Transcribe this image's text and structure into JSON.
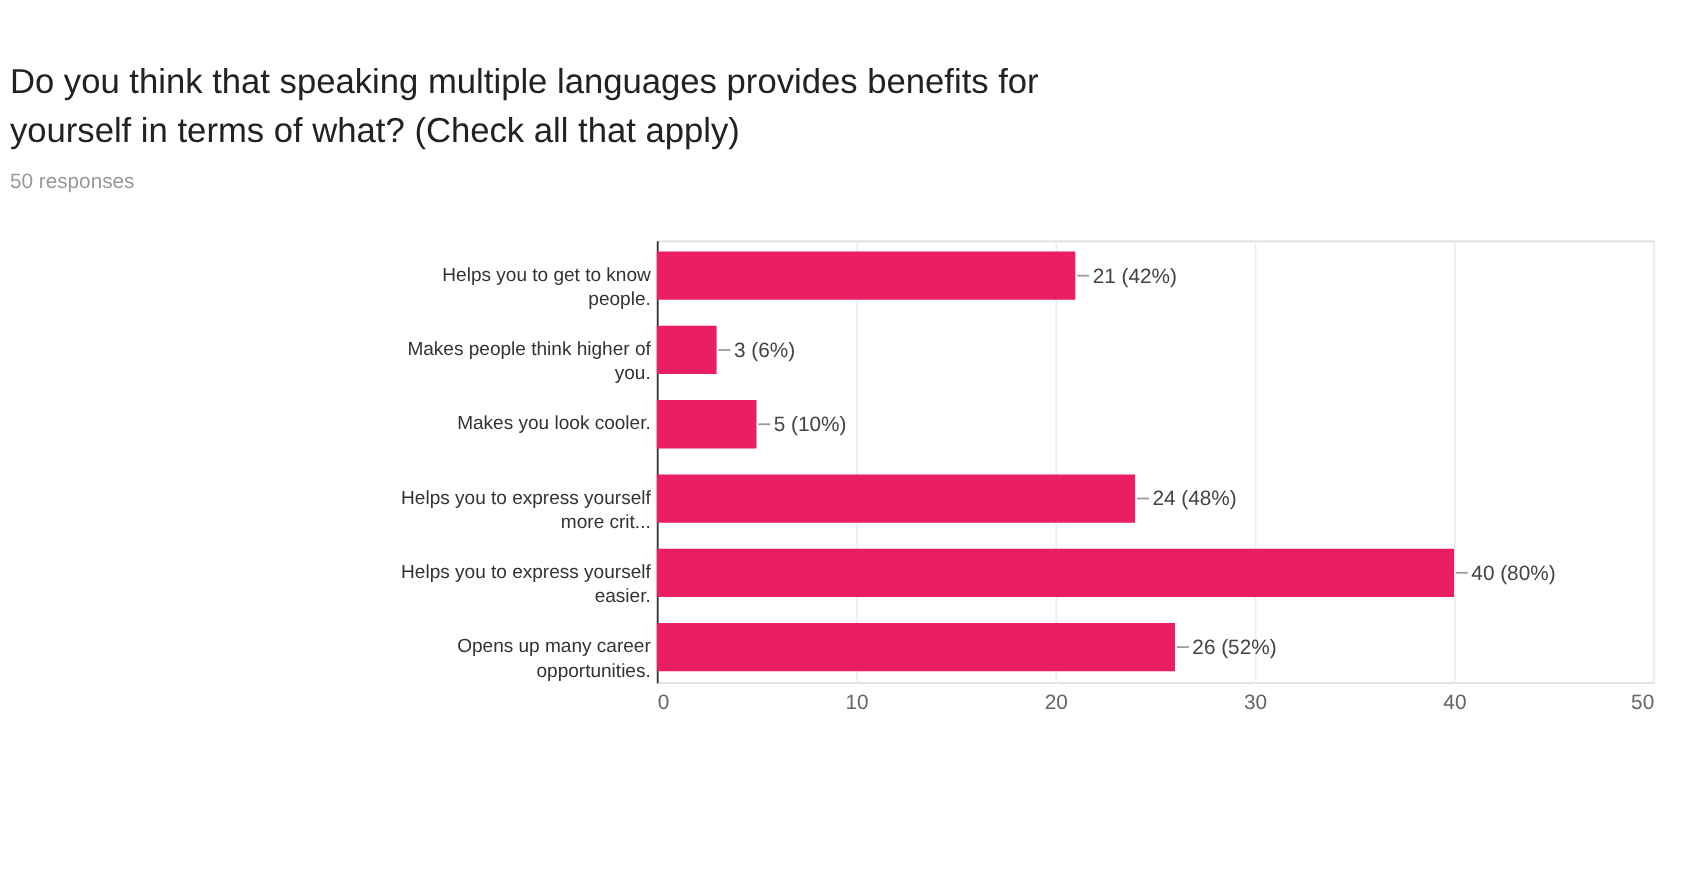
{
  "chart_data": {
    "type": "bar",
    "orientation": "horizontal",
    "title": "Do you think that speaking multiple languages provides benefits for yourself in terms of what? (Check all that apply)",
    "subtitle": "50 responses",
    "categories": [
      "Helps you to get to know people.",
      "Makes people think higher of you.",
      "Makes you look cooler.",
      "Helps you to express yourself more crit...",
      "Helps you to express yourself easier.",
      "Opens up many career opportunities."
    ],
    "values": [
      21,
      3,
      5,
      24,
      40,
      26
    ],
    "value_labels": [
      "21 (42%)",
      "3 (6%)",
      "5 (10%)",
      "24 (48%)",
      "40 (80%)",
      "26 (52%)"
    ],
    "color": "#e91e63",
    "xlim": [
      0,
      50
    ],
    "xticks": [
      0,
      10,
      20,
      30,
      40,
      50
    ],
    "grid": "x"
  }
}
